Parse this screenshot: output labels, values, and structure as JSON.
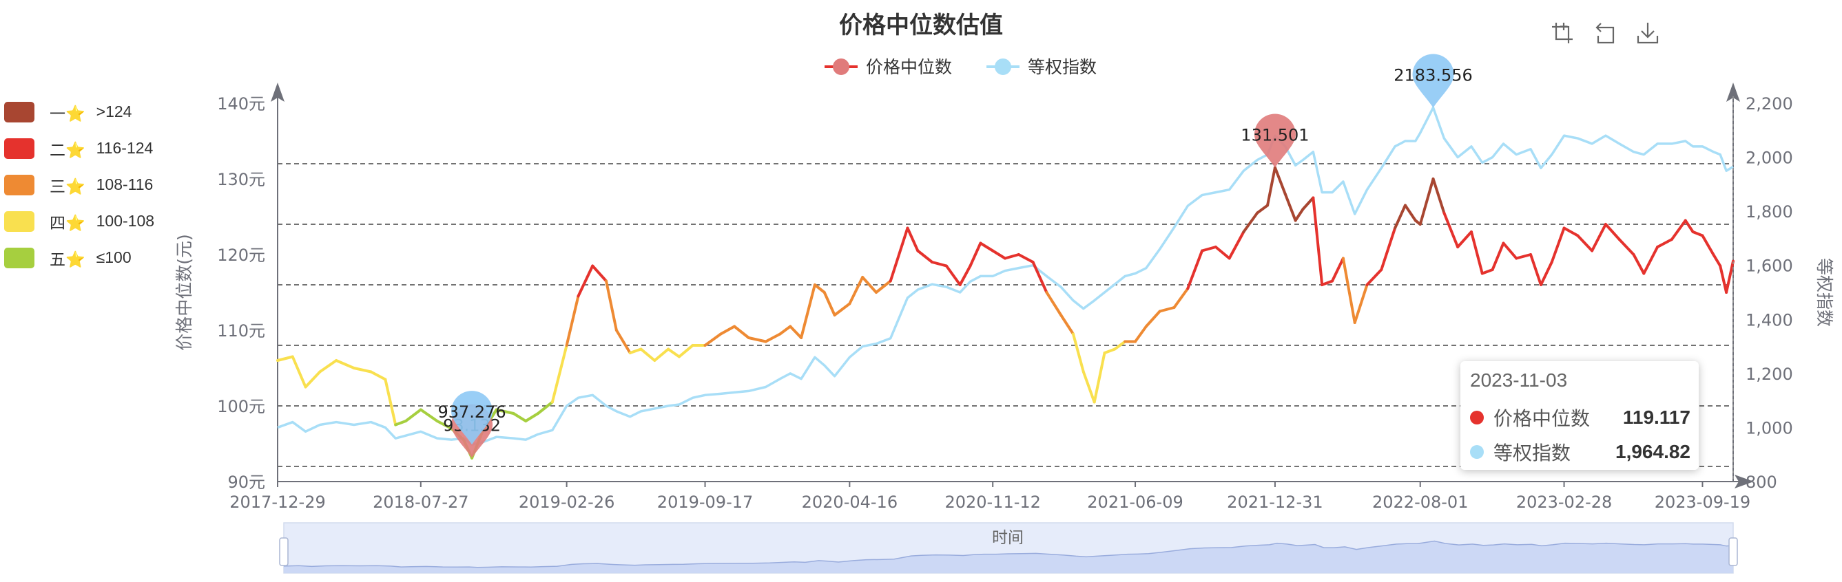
{
  "chart_data": {
    "type": "line",
    "title": "价格中位数估值",
    "legend": {
      "position": "top-center",
      "items": [
        "价格中位数",
        "等权指数"
      ]
    },
    "x_ticks": [
      "2017-12-29",
      "2018-07-27",
      "2019-02-26",
      "2019-09-17",
      "2020-04-16",
      "2020-11-12",
      "2021-06-09",
      "2021-12-31",
      "2022-08-01",
      "2023-02-28",
      "2023-09-19"
    ],
    "x_range": [
      "2017-12-29",
      "2023-11-03"
    ],
    "xlabel": "时间",
    "y_left": {
      "label": "价格中位数(元)",
      "ticks": [
        "90元",
        "100元",
        "110元",
        "120元",
        "130元",
        "140元"
      ],
      "range": [
        90,
        140
      ]
    },
    "y_right": {
      "label": "等权指数",
      "ticks": [
        "800",
        "1,000",
        "1,200",
        "1,400",
        "1,600",
        "1,800",
        "2,000",
        "2,200"
      ],
      "range": [
        800,
        2200
      ]
    },
    "reference_lines": [
      92,
      100,
      108,
      116,
      124,
      132
    ],
    "grid": false,
    "series": [
      {
        "name": "价格中位数",
        "axis": "left",
        "color": "#e5322d",
        "points": [
          [
            "2017-12-29",
            106.0
          ],
          [
            "2018-01-20",
            106.5
          ],
          [
            "2018-02-08",
            102.5
          ],
          [
            "2018-03-01",
            104.5
          ],
          [
            "2018-03-25",
            106.0
          ],
          [
            "2018-04-20",
            105.0
          ],
          [
            "2018-05-15",
            104.5
          ],
          [
            "2018-06-05",
            103.5
          ],
          [
            "2018-06-20",
            97.5
          ],
          [
            "2018-07-05",
            98.0
          ],
          [
            "2018-07-27",
            99.5
          ],
          [
            "2018-08-20",
            98.0
          ],
          [
            "2018-09-10",
            97.0
          ],
          [
            "2018-09-28",
            95.5
          ],
          [
            "2018-10-10",
            93.1
          ],
          [
            "2018-10-25",
            96.5
          ],
          [
            "2018-11-15",
            99.5
          ],
          [
            "2018-12-10",
            99.0
          ],
          [
            "2018-12-28",
            98.0
          ],
          [
            "2019-01-15",
            99.0
          ],
          [
            "2019-02-05",
            100.5
          ],
          [
            "2019-02-26",
            108.0
          ],
          [
            "2019-03-15",
            114.5
          ],
          [
            "2019-04-05",
            118.5
          ],
          [
            "2019-04-25",
            116.5
          ],
          [
            "2019-05-10",
            110.0
          ],
          [
            "2019-05-30",
            107.0
          ],
          [
            "2019-06-15",
            107.5
          ],
          [
            "2019-07-05",
            106.0
          ],
          [
            "2019-07-25",
            107.5
          ],
          [
            "2019-08-10",
            106.5
          ],
          [
            "2019-08-30",
            108.0
          ],
          [
            "2019-09-17",
            108.0
          ],
          [
            "2019-10-10",
            109.5
          ],
          [
            "2019-10-30",
            110.5
          ],
          [
            "2019-11-20",
            109.0
          ],
          [
            "2019-12-15",
            108.5
          ],
          [
            "2020-01-05",
            109.5
          ],
          [
            "2020-01-20",
            110.5
          ],
          [
            "2020-02-05",
            109.0
          ],
          [
            "2020-02-25",
            116.0
          ],
          [
            "2020-03-10",
            115.0
          ],
          [
            "2020-03-25",
            112.0
          ],
          [
            "2020-04-16",
            113.5
          ],
          [
            "2020-05-05",
            117.0
          ],
          [
            "2020-05-25",
            115.0
          ],
          [
            "2020-06-15",
            116.5
          ],
          [
            "2020-07-10",
            123.5
          ],
          [
            "2020-07-25",
            120.5
          ],
          [
            "2020-08-15",
            119.0
          ],
          [
            "2020-09-05",
            118.5
          ],
          [
            "2020-09-25",
            116.0
          ],
          [
            "2020-10-10",
            118.5
          ],
          [
            "2020-10-25",
            121.5
          ],
          [
            "2020-11-12",
            120.5
          ],
          [
            "2020-11-30",
            119.5
          ],
          [
            "2020-12-20",
            120.0
          ],
          [
            "2021-01-10",
            119.0
          ],
          [
            "2021-01-30",
            115.0
          ],
          [
            "2021-02-20",
            112.0
          ],
          [
            "2021-03-10",
            109.5
          ],
          [
            "2021-03-25",
            104.5
          ],
          [
            "2021-04-10",
            100.5
          ],
          [
            "2021-04-25",
            107.0
          ],
          [
            "2021-05-10",
            107.5
          ],
          [
            "2021-05-25",
            108.5
          ],
          [
            "2021-06-09",
            108.5
          ],
          [
            "2021-06-25",
            110.5
          ],
          [
            "2021-07-15",
            112.5
          ],
          [
            "2021-08-05",
            113.0
          ],
          [
            "2021-08-25",
            115.5
          ],
          [
            "2021-09-15",
            120.5
          ],
          [
            "2021-10-05",
            121.0
          ],
          [
            "2021-10-25",
            119.5
          ],
          [
            "2021-11-15",
            123.0
          ],
          [
            "2021-12-05",
            125.5
          ],
          [
            "2021-12-20",
            126.5
          ],
          [
            "2021-12-31",
            131.5
          ],
          [
            "2022-01-15",
            128.0
          ],
          [
            "2022-01-30",
            124.5
          ],
          [
            "2022-02-10",
            126.0
          ],
          [
            "2022-02-25",
            127.5
          ],
          [
            "2022-03-10",
            116.0
          ],
          [
            "2022-03-25",
            116.5
          ],
          [
            "2022-04-10",
            119.5
          ],
          [
            "2022-04-27",
            111.0
          ],
          [
            "2022-05-15",
            116.0
          ],
          [
            "2022-06-05",
            118.0
          ],
          [
            "2022-06-25",
            123.5
          ],
          [
            "2022-07-10",
            126.5
          ],
          [
            "2022-07-25",
            124.5
          ],
          [
            "2022-08-01",
            124.0
          ],
          [
            "2022-08-20",
            130.0
          ],
          [
            "2022-09-05",
            125.5
          ],
          [
            "2022-09-25",
            121.0
          ],
          [
            "2022-10-15",
            123.0
          ],
          [
            "2022-10-31",
            117.5
          ],
          [
            "2022-11-15",
            118.0
          ],
          [
            "2022-12-01",
            121.5
          ],
          [
            "2022-12-20",
            119.5
          ],
          [
            "2023-01-10",
            120.0
          ],
          [
            "2023-01-25",
            116.0
          ],
          [
            "2023-02-10",
            119.0
          ],
          [
            "2023-02-28",
            123.5
          ],
          [
            "2023-03-20",
            122.5
          ],
          [
            "2023-04-10",
            120.5
          ],
          [
            "2023-04-30",
            124.0
          ],
          [
            "2023-05-20",
            122.0
          ],
          [
            "2023-06-10",
            120.0
          ],
          [
            "2023-06-25",
            117.5
          ],
          [
            "2023-07-15",
            121.0
          ],
          [
            "2023-08-05",
            122.0
          ],
          [
            "2023-08-25",
            124.5
          ],
          [
            "2023-09-05",
            123.0
          ],
          [
            "2023-09-19",
            122.5
          ],
          [
            "2023-10-05",
            120.0
          ],
          [
            "2023-10-15",
            118.5
          ],
          [
            "2023-10-24",
            115.0
          ],
          [
            "2023-11-03",
            119.117
          ]
        ]
      },
      {
        "name": "等权指数",
        "axis": "right",
        "color": "#a8def7",
        "points": [
          [
            "2017-12-29",
            1000
          ],
          [
            "2018-01-20",
            1020
          ],
          [
            "2018-02-08",
            985
          ],
          [
            "2018-03-01",
            1010
          ],
          [
            "2018-03-25",
            1020
          ],
          [
            "2018-04-20",
            1010
          ],
          [
            "2018-05-15",
            1020
          ],
          [
            "2018-06-05",
            1000
          ],
          [
            "2018-06-20",
            960
          ],
          [
            "2018-07-05",
            970
          ],
          [
            "2018-07-27",
            985
          ],
          [
            "2018-08-20",
            960
          ],
          [
            "2018-09-10",
            955
          ],
          [
            "2018-09-28",
            960
          ],
          [
            "2018-10-10",
            937.276
          ],
          [
            "2018-10-25",
            945
          ],
          [
            "2018-11-15",
            965
          ],
          [
            "2018-12-10",
            960
          ],
          [
            "2018-12-28",
            955
          ],
          [
            "2019-01-15",
            975
          ],
          [
            "2019-02-05",
            990
          ],
          [
            "2019-02-26",
            1080
          ],
          [
            "2019-03-15",
            1110
          ],
          [
            "2019-04-05",
            1120
          ],
          [
            "2019-04-25",
            1080
          ],
          [
            "2019-05-10",
            1060
          ],
          [
            "2019-05-30",
            1040
          ],
          [
            "2019-06-15",
            1060
          ],
          [
            "2019-07-05",
            1070
          ],
          [
            "2019-07-25",
            1080
          ],
          [
            "2019-08-10",
            1085
          ],
          [
            "2019-08-30",
            1110
          ],
          [
            "2019-09-17",
            1120
          ],
          [
            "2019-10-10",
            1125
          ],
          [
            "2019-10-30",
            1130
          ],
          [
            "2019-11-20",
            1135
          ],
          [
            "2019-12-15",
            1150
          ],
          [
            "2020-01-05",
            1180
          ],
          [
            "2020-01-20",
            1200
          ],
          [
            "2020-02-05",
            1180
          ],
          [
            "2020-02-25",
            1260
          ],
          [
            "2020-03-10",
            1230
          ],
          [
            "2020-03-25",
            1190
          ],
          [
            "2020-04-16",
            1260
          ],
          [
            "2020-05-05",
            1300
          ],
          [
            "2020-05-25",
            1310
          ],
          [
            "2020-06-15",
            1330
          ],
          [
            "2020-07-10",
            1480
          ],
          [
            "2020-07-25",
            1510
          ],
          [
            "2020-08-15",
            1530
          ],
          [
            "2020-09-05",
            1520
          ],
          [
            "2020-09-25",
            1500
          ],
          [
            "2020-10-10",
            1540
          ],
          [
            "2020-10-25",
            1560
          ],
          [
            "2020-11-12",
            1560
          ],
          [
            "2020-11-30",
            1580
          ],
          [
            "2020-12-20",
            1590
          ],
          [
            "2021-01-10",
            1600
          ],
          [
            "2021-01-30",
            1560
          ],
          [
            "2021-02-20",
            1520
          ],
          [
            "2021-03-10",
            1470
          ],
          [
            "2021-03-25",
            1440
          ],
          [
            "2021-04-10",
            1470
          ],
          [
            "2021-04-25",
            1500
          ],
          [
            "2021-05-10",
            1530
          ],
          [
            "2021-05-25",
            1560
          ],
          [
            "2021-06-09",
            1570
          ],
          [
            "2021-06-25",
            1590
          ],
          [
            "2021-07-15",
            1660
          ],
          [
            "2021-08-05",
            1740
          ],
          [
            "2021-08-25",
            1820
          ],
          [
            "2021-09-15",
            1860
          ],
          [
            "2021-10-05",
            1870
          ],
          [
            "2021-10-25",
            1880
          ],
          [
            "2021-11-15",
            1950
          ],
          [
            "2021-12-05",
            1990
          ],
          [
            "2021-12-20",
            2010
          ],
          [
            "2021-12-31",
            2080
          ],
          [
            "2022-01-15",
            2040
          ],
          [
            "2022-01-30",
            1970
          ],
          [
            "2022-02-10",
            1990
          ],
          [
            "2022-02-25",
            2020
          ],
          [
            "2022-03-10",
            1870
          ],
          [
            "2022-03-25",
            1870
          ],
          [
            "2022-04-10",
            1910
          ],
          [
            "2022-04-27",
            1790
          ],
          [
            "2022-05-15",
            1880
          ],
          [
            "2022-06-05",
            1960
          ],
          [
            "2022-06-25",
            2040
          ],
          [
            "2022-07-10",
            2060
          ],
          [
            "2022-07-25",
            2060
          ],
          [
            "2022-08-01",
            2090
          ],
          [
            "2022-08-20",
            2183.556
          ],
          [
            "2022-09-05",
            2070
          ],
          [
            "2022-09-25",
            2000
          ],
          [
            "2022-10-15",
            2040
          ],
          [
            "2022-10-31",
            1980
          ],
          [
            "2022-11-15",
            2000
          ],
          [
            "2022-12-01",
            2050
          ],
          [
            "2022-12-20",
            2010
          ],
          [
            "2023-01-10",
            2030
          ],
          [
            "2023-01-25",
            1960
          ],
          [
            "2023-02-10",
            2010
          ],
          [
            "2023-02-28",
            2080
          ],
          [
            "2023-03-20",
            2070
          ],
          [
            "2023-04-10",
            2050
          ],
          [
            "2023-04-30",
            2080
          ],
          [
            "2023-05-20",
            2050
          ],
          [
            "2023-06-10",
            2020
          ],
          [
            "2023-06-25",
            2010
          ],
          [
            "2023-07-15",
            2050
          ],
          [
            "2023-08-05",
            2050
          ],
          [
            "2023-08-25",
            2060
          ],
          [
            "2023-09-05",
            2040
          ],
          [
            "2023-09-19",
            2040
          ],
          [
            "2023-10-05",
            2020
          ],
          [
            "2023-10-15",
            2010
          ],
          [
            "2023-10-24",
            1950
          ],
          [
            "2023-11-03",
            1964.82
          ]
        ]
      }
    ],
    "mark_points": [
      {
        "series": "价格中位数",
        "type": "max",
        "date": "2021-12-31",
        "value": 131.501,
        "label": "131.501"
      },
      {
        "series": "价格中位数",
        "type": "min",
        "date": "2018-10-10",
        "value": 93.132,
        "label": "93.132"
      },
      {
        "series": "等权指数",
        "type": "max",
        "date": "2022-08-20",
        "value": 2183.556,
        "label": "2183.556"
      },
      {
        "series": "等权指数",
        "type": "min",
        "date": "2018-10-10",
        "value": 937.276,
        "label": "937.276"
      }
    ]
  },
  "visual_map": [
    {
      "label": "一⭐",
      "range": ">124",
      "color": "#a84631",
      "min": 124,
      "max": 1000
    },
    {
      "label": "二⭐",
      "range": "116-124",
      "color": "#e5322d",
      "min": 116,
      "max": 124
    },
    {
      "label": "三⭐",
      "range": "108-116",
      "color": "#ee8a33",
      "min": 108,
      "max": 116
    },
    {
      "label": "四⭐",
      "range": "100-108",
      "color": "#f9e04f",
      "min": 100,
      "max": 108
    },
    {
      "label": "五⭐",
      "range": "≤100",
      "color": "#a6cf3f",
      "min": 0,
      "max": 100
    }
  ],
  "tooltip": {
    "date": "2023-11-03",
    "rows": [
      {
        "name": "价格中位数",
        "value": "119.117",
        "color": "#e5322d"
      },
      {
        "name": "等权指数",
        "value": "1,964.82",
        "color": "#a8def7"
      }
    ]
  },
  "toolbox": {
    "icons": [
      "zoom-icon",
      "restore-icon",
      "save-image-icon"
    ]
  },
  "data_zoom": {
    "label": "时间",
    "start": 0,
    "end": 100
  }
}
